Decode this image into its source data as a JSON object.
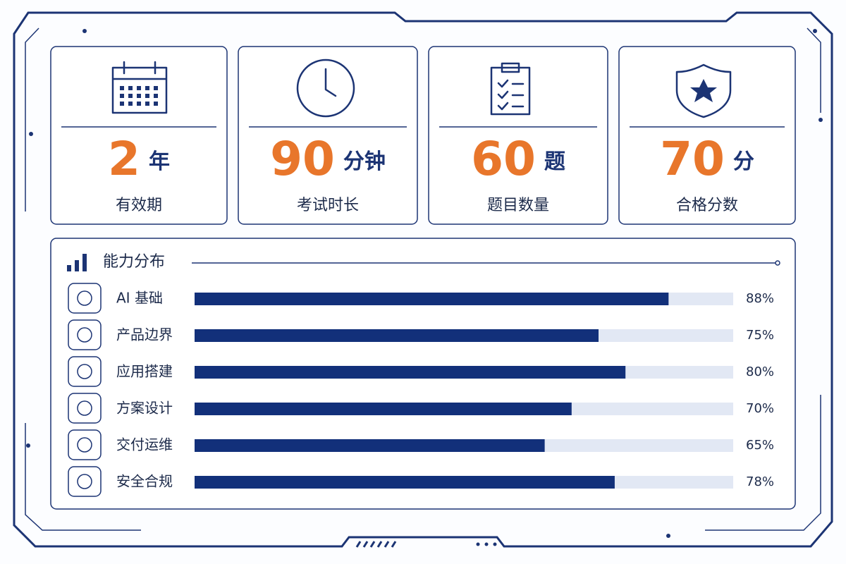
{
  "stats": [
    {
      "value": 2,
      "unit": "年",
      "label": "有效期"
    },
    {
      "value": 90,
      "unit": "分钟",
      "label": "考试时长"
    },
    {
      "value": 60,
      "unit": "题",
      "label": "题目数量"
    },
    {
      "value": 70,
      "unit": "分",
      "label": "合格分数"
    }
  ],
  "abilities": {
    "title": "能力分布",
    "categories": [
      "AI 基础",
      "产品边界",
      "应用搭建",
      "方案设计",
      "交付运维",
      "安全合规"
    ],
    "values": [
      88,
      75,
      80,
      70,
      65,
      78
    ],
    "value_labels": [
      "88%",
      "75%",
      "80%",
      "70%",
      "65%",
      "78%"
    ],
    "xlim": [
      0,
      100
    ],
    "color": "#12307a",
    "track_color": "#e2e8f4"
  }
}
